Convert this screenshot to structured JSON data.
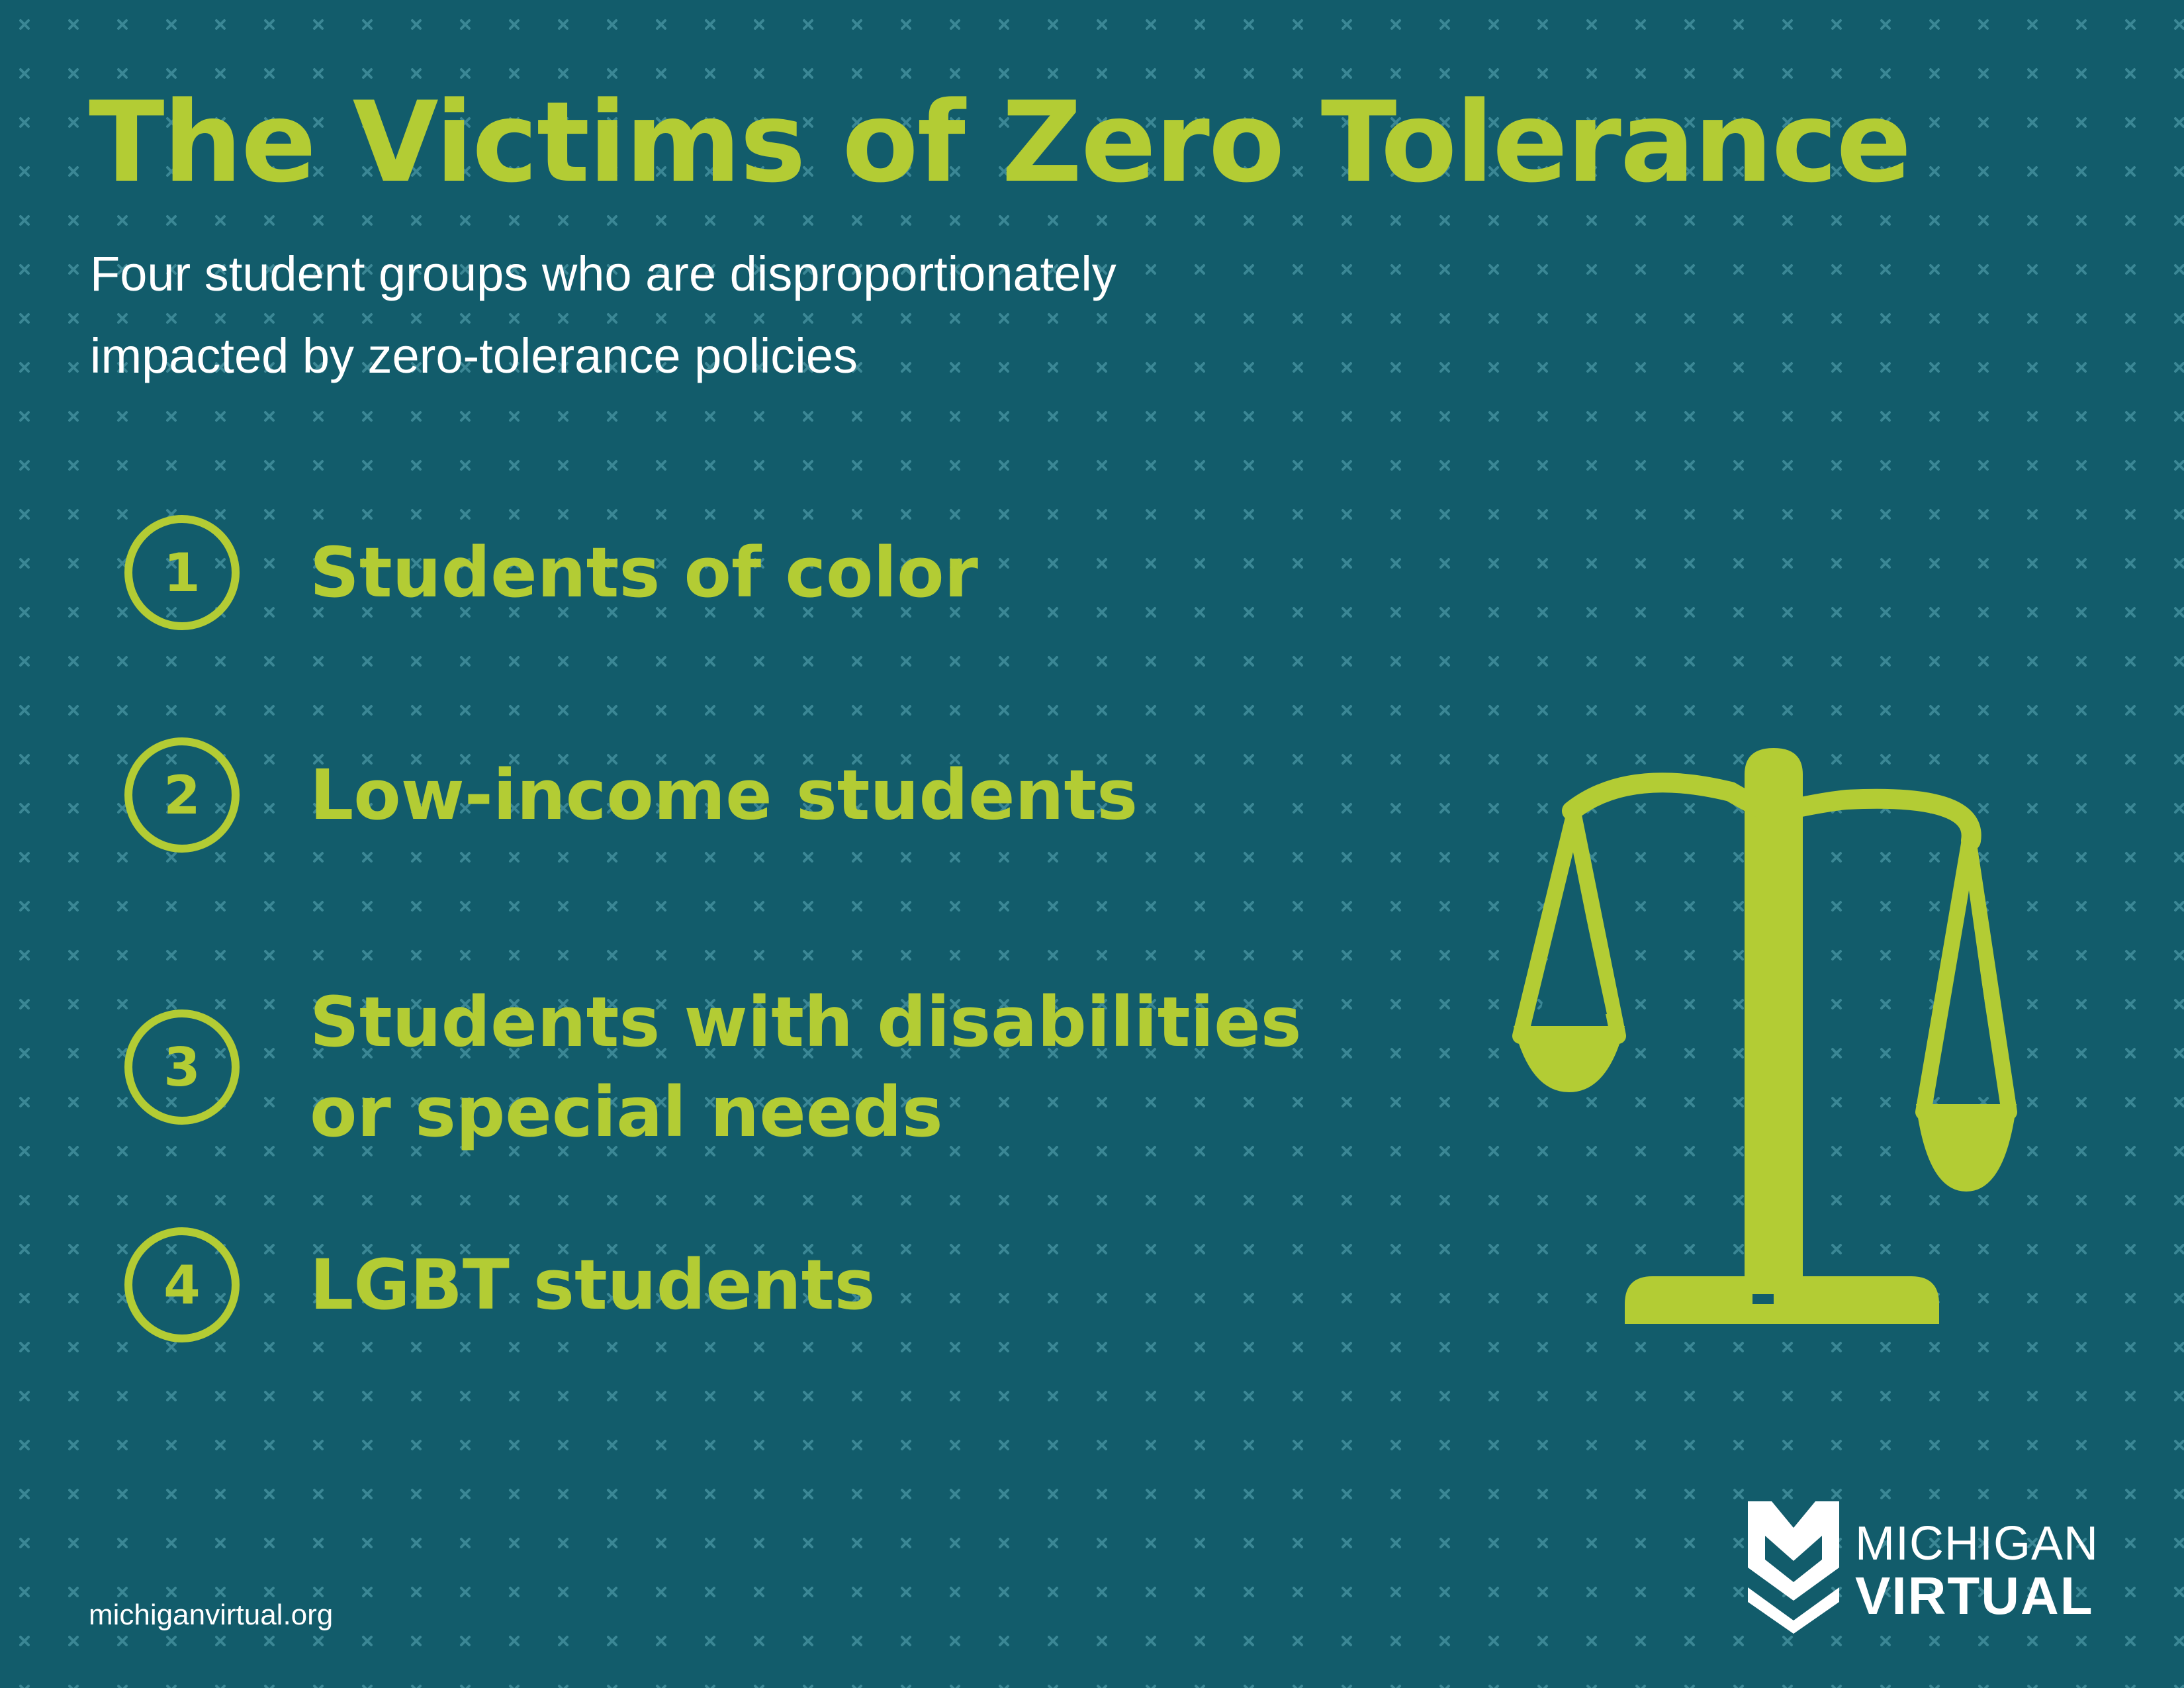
{
  "colors": {
    "background": "#125c6b",
    "pattern": "#3b8795",
    "accent": "#b3cc34",
    "text_light": "#ffffff"
  },
  "header": {
    "title": "The Victims of Zero Tolerance",
    "subtitle_lines": [
      "Four student groups who are disproportionately",
      "impacted by zero-tolerance policies"
    ]
  },
  "groups": [
    {
      "number": "1",
      "label_lines": [
        "Students of color"
      ]
    },
    {
      "number": "2",
      "label_lines": [
        "Low-income students"
      ]
    },
    {
      "number": "3",
      "label_lines": [
        "Students with disabilities",
        "or special needs"
      ]
    },
    {
      "number": "4",
      "label_lines": [
        "LGBT students"
      ]
    }
  ],
  "illustration": {
    "icon": "scales-of-justice-icon"
  },
  "logo": {
    "icon": "michigan-virtual-logo-mark",
    "word_top": "MICHIGAN",
    "word_bottom": "VIRTUAL"
  },
  "footer": {
    "url": "michiganvirtual.org"
  }
}
